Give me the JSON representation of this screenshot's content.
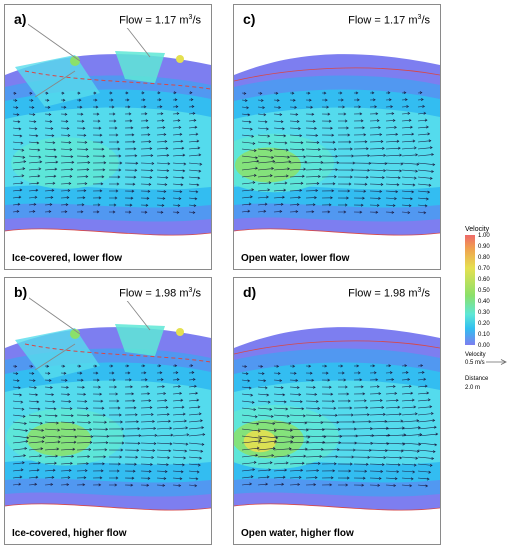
{
  "panels": [
    {
      "label": "a)",
      "flow": "Flow = 1.17",
      "unit_suffix": "m",
      "unit_exp": "3",
      "unit_tail": "/s",
      "caption": "Ice-covered, lower flow",
      "ice": true,
      "strength": 0.55
    },
    {
      "label": "c)",
      "flow": "Flow = 1.17",
      "unit_suffix": "m",
      "unit_exp": "3",
      "unit_tail": "/s",
      "caption": "Open water, lower flow",
      "ice": false,
      "strength": 0.8
    },
    {
      "label": "b)",
      "flow": "Flow = 1.98",
      "unit_suffix": "m",
      "unit_exp": "3",
      "unit_tail": "/s",
      "caption": "Ice-covered, higher flow",
      "ice": true,
      "strength": 0.75
    },
    {
      "label": "d)",
      "flow": "Flow = 1.98",
      "unit_suffix": "m",
      "unit_exp": "3",
      "unit_tail": "/s",
      "caption": "Open water, higher flow",
      "ice": false,
      "strength": 1.0
    }
  ],
  "legend": {
    "title": "Velocity",
    "ticks": [
      "1.00",
      "0.90",
      "0.80",
      "0.70",
      "0.60",
      "0.50",
      "0.40",
      "0.30",
      "0.20",
      "0.10",
      "0.00"
    ],
    "vector_label": "Velocity",
    "vector_value": "0.5 m/s",
    "distance_label": "Distance",
    "distance_value": "2.0 m"
  },
  "colors": {
    "bank_purple": "#7d7ef0",
    "mid_blue": "#4f9af0",
    "cyan": "#32bff0",
    "light_cyan": "#56dcec",
    "aqua": "#5ee7d6",
    "green": "#8be06a",
    "yellow": "#e4e050",
    "ice_edge": "#d74848"
  }
}
